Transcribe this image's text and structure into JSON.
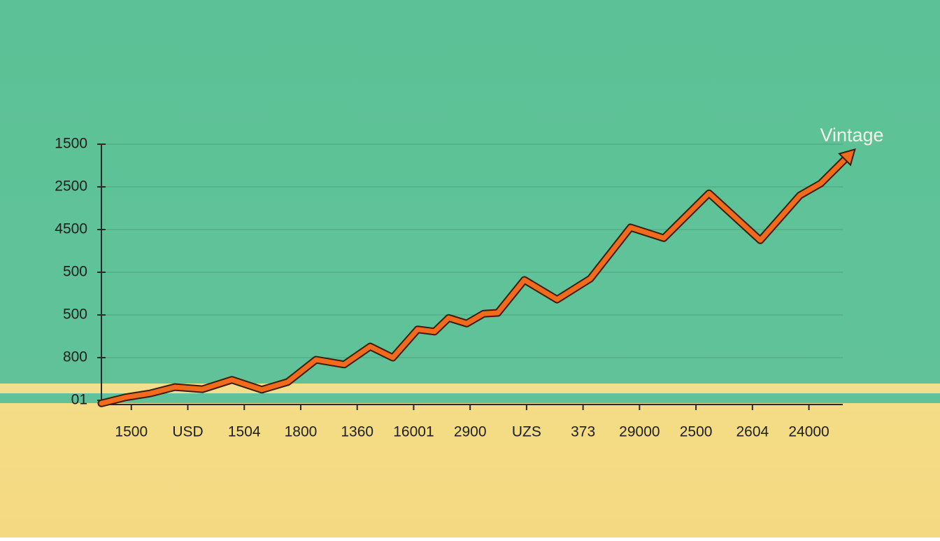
{
  "chart_data": {
    "type": "line",
    "annotation": "Vintage",
    "xlim": [
      -0.53,
      12.6
    ],
    "xticks": [
      {
        "value": 0,
        "label": "1500"
      },
      {
        "value": 1,
        "label": "USD"
      },
      {
        "value": 2,
        "label": "1504"
      },
      {
        "value": 3,
        "label": "1800"
      },
      {
        "value": 4,
        "label": "1360"
      },
      {
        "value": 5,
        "label": "16001"
      },
      {
        "value": 6,
        "label": "2900"
      },
      {
        "value": 7,
        "label": "UZS"
      },
      {
        "value": 8,
        "label": "373"
      },
      {
        "value": 9,
        "label": "29000"
      },
      {
        "value": 10,
        "label": "2500"
      },
      {
        "value": 11,
        "label": "2604"
      },
      {
        "value": 12,
        "label": "24000"
      }
    ],
    "ylim": [
      0,
      6
    ],
    "yticks": [
      {
        "value": 0,
        "label": "01"
      },
      {
        "value": 1,
        "label": "800"
      },
      {
        "value": 2,
        "label": "500"
      },
      {
        "value": 3,
        "label": "500"
      },
      {
        "value": 4,
        "label": "4500"
      },
      {
        "value": 5,
        "label": "2500"
      },
      {
        "value": 6,
        "label": "1500"
      }
    ],
    "grid": true,
    "x": [
      -0.53,
      -0.1,
      0.33,
      0.77,
      1.26,
      1.78,
      2.31,
      2.77,
      3.27,
      3.77,
      4.23,
      4.63,
      5.07,
      5.37,
      5.62,
      5.94,
      6.24,
      6.49,
      6.96,
      7.54,
      8.13,
      8.84,
      9.43,
      10.23,
      11.14,
      11.84,
      12.21,
      12.71
    ],
    "series": [
      {
        "color": "#f26a1b",
        "values": [
          -0.07,
          0.07,
          0.16,
          0.31,
          0.26,
          0.48,
          0.25,
          0.43,
          0.95,
          0.84,
          1.26,
          1.0,
          1.66,
          1.61,
          1.93,
          1.8,
          2.03,
          2.05,
          2.82,
          2.36,
          2.85,
          4.05,
          3.8,
          4.85,
          3.75,
          4.8,
          5.08,
          5.74
        ]
      }
    ]
  }
}
